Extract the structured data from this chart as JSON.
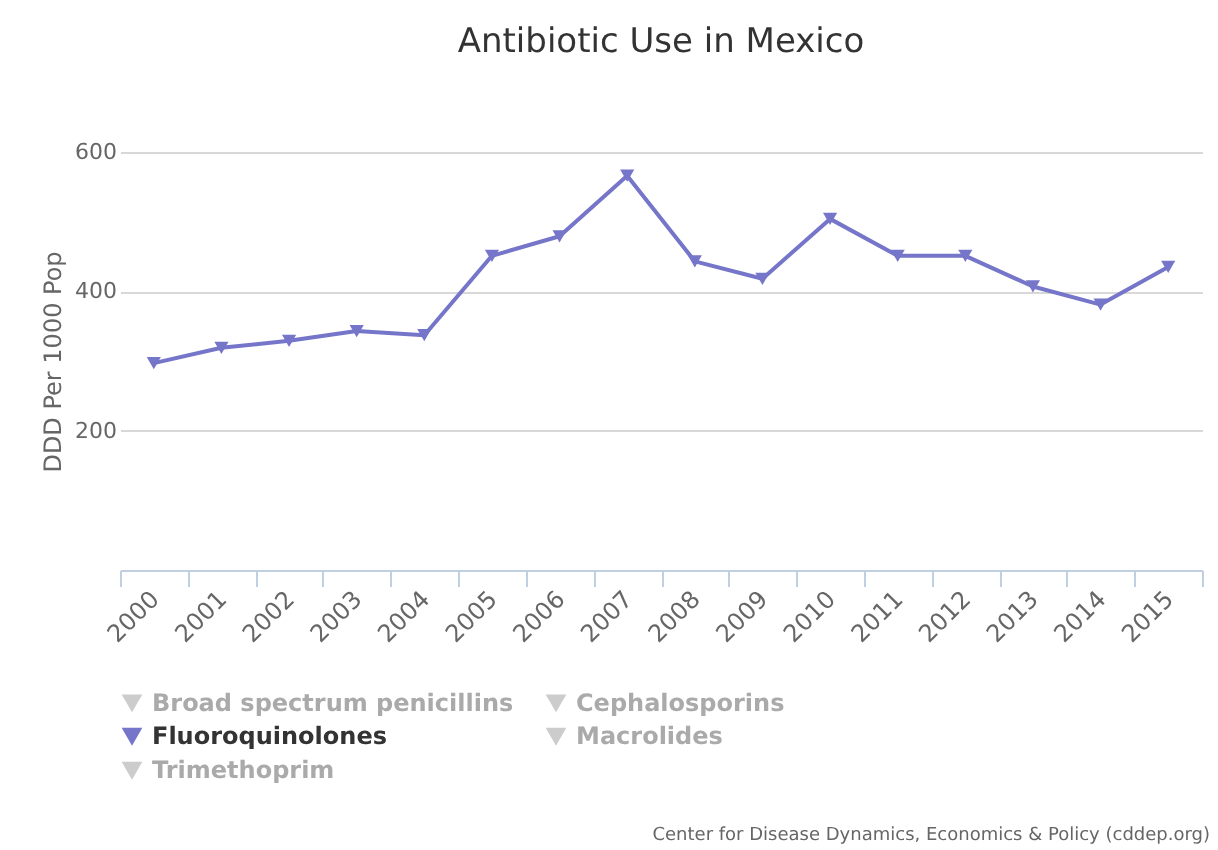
{
  "chart_data": {
    "type": "line",
    "title": "Antibiotic Use in Mexico",
    "ylabel": "DDD Per 1000 Pop",
    "annotations": [
      "Center for Disease Dynamics, Economics & Policy (cddep.org)"
    ],
    "categories": [
      "2000",
      "2001",
      "2002",
      "2003",
      "2004",
      "2005",
      "2006",
      "2007",
      "2008",
      "2009",
      "2010",
      "2011",
      "2012",
      "2013",
      "2014",
      "2015"
    ],
    "series": [
      {
        "name": "Broad spectrum penicillins",
        "color": "#cccccc",
        "values": [
          null,
          null,
          null,
          null,
          null,
          null,
          null,
          null,
          null,
          null,
          null,
          null,
          null,
          null,
          null,
          null
        ]
      },
      {
        "name": "Cephalosporins",
        "color": "#cccccc",
        "values": [
          null,
          null,
          null,
          null,
          null,
          null,
          null,
          null,
          null,
          null,
          null,
          null,
          null,
          null,
          null,
          null
        ]
      },
      {
        "name": "Fluoroquinolones",
        "color": "#7575c9",
        "values": [
          297,
          319,
          329,
          343,
          337,
          451,
          479,
          566,
          443,
          418,
          504,
          451,
          451,
          407,
          381,
          435
        ]
      },
      {
        "name": "Macrolides",
        "color": "#cccccc",
        "values": [
          null,
          null,
          null,
          null,
          null,
          null,
          null,
          null,
          null,
          null,
          null,
          null,
          null,
          null,
          null,
          null
        ]
      },
      {
        "name": "Trimethoprim",
        "color": "#cccccc",
        "values": [
          null,
          null,
          null,
          null,
          null,
          null,
          null,
          null,
          null,
          null,
          null,
          null,
          null,
          null,
          null,
          null
        ]
      }
    ],
    "ylim": [
      0,
      600
    ],
    "yticks": [
      200,
      400,
      600
    ],
    "grid": "y",
    "legend": "bottom",
    "marker": "triangle",
    "line_style": "solid"
  }
}
